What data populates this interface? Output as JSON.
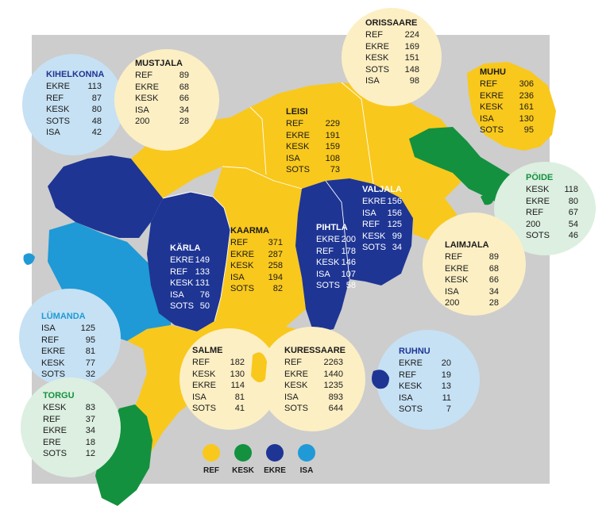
{
  "colors": {
    "REF": "#f9c81c",
    "KESK": "#13913f",
    "EKRE": "#1e3594",
    "ISA": "#1f9ad6",
    "bg": "#cdcdcd",
    "circle_yellow": "#fcefc4",
    "circle_blue": "#c6e1f4",
    "circle_green": "#dcefe0"
  },
  "parishes": [
    {
      "name": "KIHELKONNA",
      "title_color": "#1e3594",
      "circle": "blue",
      "rows": [
        [
          "EKRE",
          "113"
        ],
        [
          "REF",
          "87"
        ],
        [
          "KESK",
          "80"
        ],
        [
          "SOTS",
          "48"
        ],
        [
          "ISA",
          "42"
        ]
      ]
    },
    {
      "name": "MUSTJALA",
      "title_color": "#1a1a1a",
      "circle": "yellow",
      "rows": [
        [
          "REF",
          "89"
        ],
        [
          "EKRE",
          "68"
        ],
        [
          "KESK",
          "66"
        ],
        [
          "ISA",
          "34"
        ],
        [
          "200",
          "28"
        ]
      ]
    },
    {
      "name": "ORISSAARE",
      "title_color": "#1a1a1a",
      "circle": "yellow",
      "rows": [
        [
          "REF",
          "224"
        ],
        [
          "EKRE",
          "169"
        ],
        [
          "KESK",
          "151"
        ],
        [
          "SOTS",
          "148"
        ],
        [
          "ISA",
          "98"
        ]
      ]
    },
    {
      "name": "MUHU",
      "title_color": "#1a1a1a",
      "circle": "none",
      "rows": [
        [
          "REF",
          "306"
        ],
        [
          "EKRE",
          "236"
        ],
        [
          "KESK",
          "161"
        ],
        [
          "ISA",
          "130"
        ],
        [
          "SOTS",
          "95"
        ]
      ]
    },
    {
      "name": "LEISI",
      "title_color": "#1a1a1a",
      "circle": "none",
      "rows": [
        [
          "REF",
          "229"
        ],
        [
          "EKRE",
          "191"
        ],
        [
          "KESK",
          "159"
        ],
        [
          "ISA",
          "108"
        ],
        [
          "SOTS",
          "73"
        ]
      ]
    },
    {
      "name": "PÖIDE",
      "title_color": "#13913f",
      "circle": "green",
      "rows": [
        [
          "KESK",
          "118"
        ],
        [
          "EKRE",
          "80"
        ],
        [
          "REF",
          "67"
        ],
        [
          "200",
          "54"
        ],
        [
          "SOTS",
          "46"
        ]
      ]
    },
    {
      "name": "VALJALA",
      "title_color": "#ffffff",
      "circle": "none",
      "rows": [
        [
          "EKRE",
          "156"
        ],
        [
          "ISA",
          "156"
        ],
        [
          "REF",
          "125"
        ],
        [
          "KESK",
          "99"
        ],
        [
          "SOTS",
          "34"
        ]
      ]
    },
    {
      "name": "KAARMA",
      "title_color": "#1a1a1a",
      "circle": "none",
      "rows": [
        [
          "REF",
          "371"
        ],
        [
          "EKRE",
          "287"
        ],
        [
          "KESK",
          "258"
        ],
        [
          "ISA",
          "194"
        ],
        [
          "SOTS",
          "82"
        ]
      ]
    },
    {
      "name": "KÄRLA",
      "title_color": "#ffffff",
      "circle": "none",
      "rows": [
        [
          "EKRE",
          "149"
        ],
        [
          "REF",
          "133"
        ],
        [
          "KESK",
          "131"
        ],
        [
          "ISA",
          "76"
        ],
        [
          "SOTS",
          "50"
        ]
      ]
    },
    {
      "name": "PIHTLA",
      "title_color": "#ffffff",
      "circle": "none",
      "rows": [
        [
          "EKRE",
          "200"
        ],
        [
          "REF",
          "178"
        ],
        [
          "KESK",
          "146"
        ],
        [
          "ISA",
          "107"
        ],
        [
          "SOTS",
          "58"
        ]
      ]
    },
    {
      "name": "LAIMJALA",
      "title_color": "#1a1a1a",
      "circle": "yellow",
      "rows": [
        [
          "REF",
          "89"
        ],
        [
          "EKRE",
          "68"
        ],
        [
          "KESK",
          "66"
        ],
        [
          "ISA",
          "34"
        ],
        [
          "200",
          "28"
        ]
      ]
    },
    {
      "name": "LÜMANDA",
      "title_color": "#1f9ad6",
      "circle": "blue",
      "rows": [
        [
          "ISA",
          "125"
        ],
        [
          "REF",
          "95"
        ],
        [
          "EKRE",
          "81"
        ],
        [
          "KESK",
          "77"
        ],
        [
          "SOTS",
          "32"
        ]
      ]
    },
    {
      "name": "SALME",
      "title_color": "#1a1a1a",
      "circle": "yellow",
      "rows": [
        [
          "REF",
          "182"
        ],
        [
          "KESK",
          "130"
        ],
        [
          "EKRE",
          "114"
        ],
        [
          "ISA",
          "81"
        ],
        [
          "SOTS",
          "41"
        ]
      ]
    },
    {
      "name": "KURESSAARE",
      "title_color": "#1a1a1a",
      "circle": "yellow",
      "rows": [
        [
          "REF",
          "2263"
        ],
        [
          "EKRE",
          "1440"
        ],
        [
          "KESK",
          "1235"
        ],
        [
          "ISA",
          "893"
        ],
        [
          "SOTS",
          "644"
        ]
      ]
    },
    {
      "name": "RUHNU",
      "title_color": "#1e3594",
      "circle": "blue",
      "rows": [
        [
          "EKRE",
          "20"
        ],
        [
          "REF",
          "19"
        ],
        [
          "KESK",
          "13"
        ],
        [
          "ISA",
          "11"
        ],
        [
          "SOTS",
          "7"
        ]
      ]
    },
    {
      "name": "TORGU",
      "title_color": "#13913f",
      "circle": "green",
      "rows": [
        [
          "KESK",
          "83"
        ],
        [
          "REF",
          "37"
        ],
        [
          "EKRE",
          "34"
        ],
        [
          "ERE",
          "18"
        ],
        [
          "SOTS",
          "12"
        ]
      ]
    }
  ],
  "legend": [
    {
      "label": "REF",
      "color": "#f9c81c"
    },
    {
      "label": "KESK",
      "color": "#13913f"
    },
    {
      "label": "EKRE",
      "color": "#1e3594"
    },
    {
      "label": "ISA",
      "color": "#1f9ad6"
    }
  ]
}
